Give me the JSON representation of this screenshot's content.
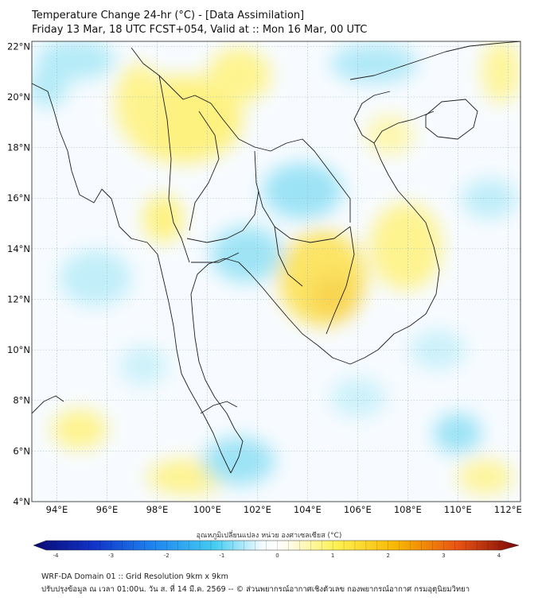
{
  "header": {
    "title_line1": "Temperature Change 24-hr (°C) - [Data Assimilation]",
    "title_line2": "Friday 13 Mar, 18 UTC FCST+054, Valid at :: Mon 16 Mar, 00 UTC"
  },
  "map": {
    "lat_labels": [
      "22°N",
      "20°N",
      "18°N",
      "16°N",
      "14°N",
      "12°N",
      "10°N",
      "8°N",
      "6°N",
      "4°N"
    ],
    "lat_values": [
      22,
      20,
      18,
      16,
      14,
      12,
      10,
      8,
      6,
      4
    ],
    "lon_labels": [
      "94°E",
      "96°E",
      "98°E",
      "100°E",
      "102°E",
      "104°E",
      "106°E",
      "108°E",
      "110°E",
      "112°E"
    ],
    "lon_values": [
      94,
      96,
      98,
      100,
      102,
      104,
      106,
      108,
      110,
      112
    ],
    "lon_range": [
      93,
      112.5
    ],
    "lat_range": [
      4,
      22.2
    ]
  },
  "colorbar": {
    "label": "อุณหภูมิเปลี่ยนแปลง หน่วย องศาเซลเซียส (°C)",
    "ticks": [
      "-4",
      "-3",
      "-2",
      "-1",
      "0",
      "1",
      "2",
      "3",
      "4"
    ],
    "tick_values": [
      -4,
      -3,
      -2,
      -1,
      0,
      1,
      2,
      3,
      4
    ],
    "colors": [
      "#0a0a72",
      "#1233c8",
      "#1f86ef",
      "#46cdf2",
      "#ffffff",
      "#fff150",
      "#f7b500",
      "#e85212",
      "#7a0808"
    ]
  },
  "footer": {
    "line1": "WRF-DA Domain 01 :: Grid Resolution 9km x 9km",
    "line2": "ปรับปรุงข้อมูล ณ เวลา 01:00น. วัน ส. ที่ 14 มี.ค. 2569 -- © ส่วนพยากรณ์อากาศเชิงตัวเลข กองพยากรณ์อากาศ กรมอุตุนิยมวิทยา"
  }
}
